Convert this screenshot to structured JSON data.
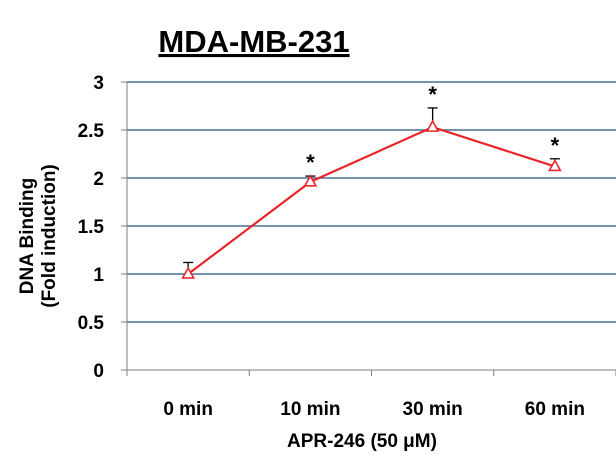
{
  "chart_data": {
    "type": "line",
    "title": "MDA-MB-231",
    "xlabel": "APR-246 (50 μM)",
    "ylabel_line1": "DNA Binding",
    "ylabel_line2": "(Fold induction)",
    "categories": [
      "0 min",
      "10 min",
      "30 min",
      "60 min"
    ],
    "series": [
      {
        "values": [
          1.0,
          1.96,
          2.53,
          2.12
        ],
        "error": [
          0.12,
          0.06,
          0.2,
          0.08
        ],
        "significance": [
          "",
          "*",
          "*",
          "*"
        ],
        "color": "#e8262b",
        "marker": "open-triangle"
      }
    ],
    "ylim": [
      0,
      3
    ],
    "yticks": [
      0,
      0.5,
      1,
      1.5,
      2,
      2.5,
      3
    ],
    "ytick_labels": [
      "0",
      "0.5",
      "1",
      "1.5",
      "2",
      "2.5",
      "3"
    ],
    "grid": true,
    "grid_color": "#4a6e8f",
    "legend": false
  }
}
